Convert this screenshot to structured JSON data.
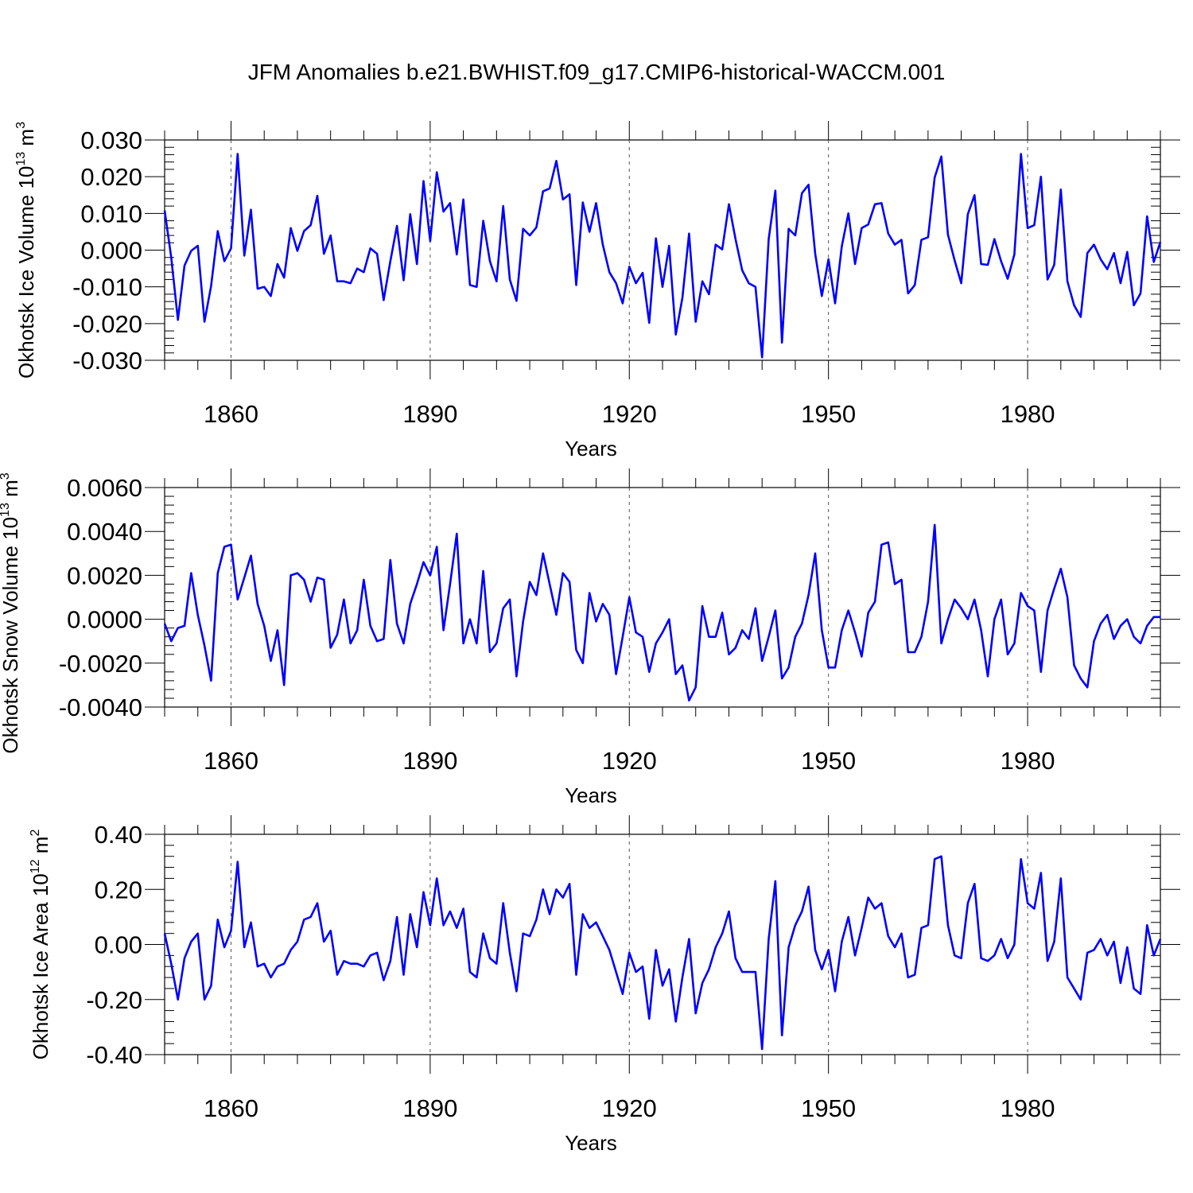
{
  "title": "JFM Anomalies b.e21.BWHIST.f09_g17.CMIP6-historical-WACCM.001",
  "line_color": "#0000ff",
  "chart_data": [
    {
      "type": "line",
      "ylabel_main": "Okhotsk Ice Volume 10",
      "ylabel_exp": "13",
      "ylabel_unit": "m",
      "ylabel_unit_exp": "3",
      "xlabel": "Years",
      "xlim": [
        1850,
        2000
      ],
      "ylim": [
        -0.03,
        0.03
      ],
      "yticks": [
        -0.03,
        -0.02,
        -0.01,
        0.0,
        0.01,
        0.02,
        0.03
      ],
      "ytick_labels": [
        "-0.030",
        "-0.020",
        "-0.010",
        "0.000",
        "0.010",
        "0.020",
        "0.030"
      ],
      "xticks": [
        1860,
        1890,
        1920,
        1950,
        1980
      ],
      "xtick_labels": [
        "1860",
        "1890",
        "1920",
        "1950",
        "1980"
      ],
      "x_start": 1850,
      "values": [
        0.0108,
        -0.002,
        -0.019,
        -0.0042,
        -0.0002,
        0.0012,
        -0.0195,
        -0.0098,
        0.0052,
        -0.003,
        0.0005,
        0.0262,
        -0.0015,
        0.011,
        -0.0105,
        -0.01,
        -0.0125,
        -0.0038,
        -0.0075,
        0.006,
        -0.0002,
        0.0052,
        0.0068,
        0.0148,
        -0.001,
        0.004,
        -0.0085,
        -0.0085,
        -0.009,
        -0.005,
        -0.006,
        0.0005,
        -0.001,
        -0.0136,
        -0.003,
        0.0066,
        -0.0082,
        0.0098,
        -0.0038,
        0.0188,
        0.0025,
        0.0212,
        0.0105,
        0.0128,
        -0.0012,
        0.0138,
        -0.0095,
        -0.01,
        0.008,
        -0.003,
        -0.0085,
        0.012,
        -0.008,
        -0.0138,
        0.0058,
        0.004,
        0.0062,
        0.016,
        0.0168,
        0.0243,
        0.0138,
        0.0152,
        -0.0095,
        0.013,
        0.005,
        0.0128,
        0.0015,
        -0.006,
        -0.009,
        -0.0145,
        -0.0045,
        -0.009,
        -0.0062,
        -0.0198,
        0.0032,
        -0.01,
        0.0012,
        -0.023,
        -0.013,
        0.0045,
        -0.0195,
        -0.0085,
        -0.012,
        0.0015,
        0.0002,
        0.0125,
        0.003,
        -0.0055,
        -0.009,
        -0.01,
        -0.0292,
        0.003,
        0.0162,
        -0.0252,
        0.0058,
        0.004,
        0.0155,
        0.0178,
        -0.001,
        -0.0125,
        -0.0025,
        -0.0145,
        0.001,
        0.01,
        -0.0038,
        0.006,
        0.007,
        0.0125,
        0.0128,
        0.0045,
        0.0015,
        0.0028,
        -0.0118,
        -0.0095,
        0.0028,
        0.0035,
        0.0198,
        0.0255,
        0.0042,
        -0.0028,
        -0.009,
        0.0098,
        0.015,
        -0.0038,
        -0.004,
        0.003,
        -0.003,
        -0.0078,
        -0.0012,
        0.0262,
        0.006,
        0.0068,
        0.02,
        -0.008,
        -0.004,
        0.0165,
        -0.0085,
        -0.015,
        -0.0182,
        -0.0008,
        0.0015,
        -0.0025,
        -0.0052,
        -0.0008,
        -0.009,
        -0.0005,
        -0.015,
        -0.0118,
        0.0092,
        -0.0032,
        0.0022
      ]
    },
    {
      "type": "line",
      "ylabel_main": "Okhotsk Snow Volume 10",
      "ylabel_exp": "13",
      "ylabel_unit": "m",
      "ylabel_unit_exp": "3",
      "xlabel": "Years",
      "xlim": [
        1850,
        2000
      ],
      "ylim": [
        -0.004,
        0.006
      ],
      "yticks": [
        -0.004,
        -0.002,
        0.0,
        0.002,
        0.004,
        0.006
      ],
      "ytick_labels": [
        "-0.0040",
        "-0.0020",
        "0.0000",
        "0.0020",
        "0.0040",
        "0.0060"
      ],
      "xticks": [
        1860,
        1890,
        1920,
        1950,
        1980
      ],
      "xtick_labels": [
        "1860",
        "1890",
        "1920",
        "1950",
        "1980"
      ],
      "x_start": 1850,
      "values": [
        -0.0002,
        -0.001,
        -0.0004,
        -0.0003,
        0.0021,
        0.0002,
        -0.0012,
        -0.0028,
        0.0021,
        0.0033,
        0.0034,
        0.0009,
        0.0019,
        0.0029,
        0.0007,
        -0.0003,
        -0.0019,
        -0.0005,
        -0.003,
        0.002,
        0.0021,
        0.0018,
        0.0008,
        0.0019,
        0.0018,
        -0.0013,
        -0.0007,
        0.0009,
        -0.0011,
        -0.0005,
        0.0018,
        -0.0003,
        -0.001,
        -0.0009,
        0.0027,
        -0.0002,
        -0.0011,
        0.0007,
        0.0016,
        0.0026,
        0.002,
        0.0033,
        -0.0005,
        0.0016,
        0.0039,
        -0.0011,
        0.0,
        -0.0011,
        0.0022,
        -0.0015,
        -0.0011,
        0.0005,
        0.0009,
        -0.0026,
        -0.0001,
        0.0017,
        0.0011,
        0.003,
        0.0016,
        0.0002,
        0.0021,
        0.0017,
        -0.0014,
        -0.002,
        0.0012,
        -0.0001,
        0.0007,
        0.0002,
        -0.0025,
        -0.0008,
        0.001,
        -0.0006,
        -0.0008,
        -0.0024,
        -0.0011,
        -0.0006,
        0.0,
        -0.0025,
        -0.0021,
        -0.0037,
        -0.0031,
        0.0006,
        -0.0008,
        -0.0008,
        0.0003,
        -0.0016,
        -0.0013,
        -0.0005,
        -0.0009,
        0.0005,
        -0.0019,
        -0.0008,
        0.0004,
        -0.0027,
        -0.0022,
        -0.0008,
        -0.0002,
        0.0011,
        0.003,
        -0.0005,
        -0.0022,
        -0.0022,
        -0.0005,
        0.0004,
        -0.0006,
        -0.0017,
        0.0003,
        0.0008,
        0.0034,
        0.0035,
        0.0016,
        0.0018,
        -0.0015,
        -0.0015,
        -0.0008,
        0.0008,
        0.0043,
        -0.0011,
        0.0,
        0.0009,
        0.0005,
        0.0,
        0.0009,
        -0.0005,
        -0.0026,
        0.0,
        0.0009,
        -0.0016,
        -0.0011,
        0.0012,
        0.0006,
        0.0004,
        -0.0024,
        0.0004,
        0.0014,
        0.0023,
        0.001,
        -0.0021,
        -0.0027,
        -0.0031,
        -0.001,
        -0.0002,
        0.0002,
        -0.0009,
        -0.0003,
        0.0,
        -0.0008,
        -0.0011,
        -0.0003,
        0.0001,
        0.0001
      ]
    },
    {
      "type": "line",
      "ylabel_main": "Okhotsk Ice Area 10",
      "ylabel_exp": "12",
      "ylabel_unit": "m",
      "ylabel_unit_exp": "2",
      "xlabel": "Years",
      "xlim": [
        1850,
        2000
      ],
      "ylim": [
        -0.4,
        0.4
      ],
      "yticks": [
        -0.4,
        -0.2,
        0.0,
        0.2,
        0.4
      ],
      "ytick_labels": [
        "-0.40",
        "-0.20",
        "0.00",
        "0.20",
        "0.40"
      ],
      "xticks": [
        1860,
        1890,
        1920,
        1950,
        1980
      ],
      "xtick_labels": [
        "1860",
        "1890",
        "1920",
        "1950",
        "1980"
      ],
      "x_start": 1850,
      "values": [
        0.04,
        -0.07,
        -0.2,
        -0.05,
        0.01,
        0.04,
        -0.2,
        -0.15,
        0.09,
        -0.01,
        0.05,
        0.3,
        -0.01,
        0.08,
        -0.08,
        -0.07,
        -0.12,
        -0.08,
        -0.07,
        -0.02,
        0.01,
        0.09,
        0.1,
        0.15,
        0.01,
        0.05,
        -0.11,
        -0.06,
        -0.07,
        -0.07,
        -0.08,
        -0.04,
        -0.03,
        -0.13,
        -0.06,
        0.1,
        -0.11,
        0.11,
        -0.01,
        0.19,
        0.07,
        0.24,
        0.07,
        0.12,
        0.06,
        0.13,
        -0.1,
        -0.12,
        0.04,
        -0.05,
        -0.07,
        0.15,
        -0.03,
        -0.17,
        0.04,
        0.03,
        0.09,
        0.2,
        0.11,
        0.2,
        0.17,
        0.22,
        -0.11,
        0.11,
        0.06,
        0.08,
        0.03,
        -0.02,
        -0.1,
        -0.18,
        -0.03,
        -0.1,
        -0.08,
        -0.27,
        -0.02,
        -0.15,
        -0.09,
        -0.28,
        -0.12,
        0.02,
        -0.25,
        -0.14,
        -0.09,
        -0.01,
        0.04,
        0.12,
        -0.05,
        -0.1,
        -0.1,
        -0.1,
        -0.38,
        0.02,
        0.23,
        -0.33,
        -0.01,
        0.07,
        0.12,
        0.21,
        -0.02,
        -0.09,
        -0.02,
        -0.17,
        0.01,
        0.1,
        -0.04,
        0.06,
        0.17,
        0.13,
        0.15,
        0.03,
        -0.01,
        0.04,
        -0.12,
        -0.11,
        0.06,
        0.07,
        0.31,
        0.32,
        0.07,
        -0.04,
        -0.05,
        0.15,
        0.22,
        -0.05,
        -0.06,
        -0.04,
        0.02,
        -0.05,
        0.0,
        0.31,
        0.15,
        0.13,
        0.26,
        -0.06,
        0.01,
        0.24,
        -0.12,
        -0.16,
        -0.2,
        -0.03,
        -0.02,
        0.02,
        -0.04,
        0.01,
        -0.14,
        -0.01,
        -0.16,
        -0.18,
        0.07,
        -0.04,
        0.02
      ]
    }
  ]
}
